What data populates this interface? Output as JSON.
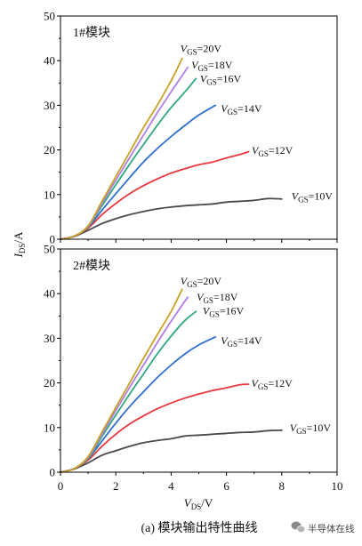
{
  "figure": {
    "ylabel": {
      "base": "I",
      "sub": "DS",
      "rest": "/A"
    },
    "xlabel": {
      "base": "V",
      "sub": "DS",
      "rest": "/V"
    },
    "caption": "(a) 模块输出特性曲线",
    "watermark": "半导体在线"
  },
  "chart_data": [
    {
      "type": "line",
      "title": "1#模块",
      "xlim": [
        0,
        10
      ],
      "ylim": [
        0,
        50
      ],
      "xticks": [
        0,
        2,
        4,
        6,
        8,
        10
      ],
      "xticks_minor": [
        1,
        3,
        5,
        7,
        9
      ],
      "xtick_labels": [],
      "yticks": [
        0,
        10,
        20,
        30,
        40,
        50
      ],
      "yticks_minor": [
        5,
        15,
        25,
        35,
        45
      ],
      "ytick_labels": [
        "0",
        "10",
        "20",
        "30",
        "40",
        "50"
      ],
      "grid": false,
      "series": [
        {
          "name": {
            "base": "V",
            "sub": "GS",
            "rest": "=20V"
          },
          "color": "#c9a227",
          "x": [
            0,
            0.5,
            1,
            1.5,
            2,
            2.5,
            3,
            3.5,
            4,
            4.4
          ],
          "y": [
            0,
            0.7,
            3.0,
            8.5,
            14.0,
            19.5,
            25.0,
            30.0,
            35.5,
            40.5
          ]
        },
        {
          "name": {
            "base": "V",
            "sub": "GS",
            "rest": "=18V"
          },
          "color": "#b07ee6",
          "x": [
            0,
            0.5,
            1,
            1.5,
            2,
            2.5,
            3,
            3.5,
            4,
            4.6
          ],
          "y": [
            0,
            0.7,
            2.9,
            8.0,
            13.2,
            18.3,
            23.3,
            28.3,
            33.0,
            38.5
          ]
        },
        {
          "name": {
            "base": "V",
            "sub": "GS",
            "rest": "=16V"
          },
          "color": "#2ea87c",
          "x": [
            0,
            0.5,
            1,
            1.5,
            2,
            2.5,
            3,
            3.5,
            4,
            4.5,
            4.9
          ],
          "y": [
            0,
            0.7,
            2.8,
            7.5,
            12.2,
            16.8,
            21.2,
            25.5,
            29.5,
            33.0,
            36.0
          ]
        },
        {
          "name": {
            "base": "V",
            "sub": "GS",
            "rest": "=14V"
          },
          "color": "#2f6fd0",
          "x": [
            0,
            0.5,
            1,
            1.5,
            2,
            2.5,
            3,
            3.5,
            4,
            4.5,
            5,
            5.6
          ],
          "y": [
            0,
            0.7,
            2.7,
            6.5,
            10.2,
            13.8,
            17.3,
            20.3,
            23.0,
            25.5,
            27.8,
            30.0
          ]
        },
        {
          "name": {
            "base": "V",
            "sub": "GS",
            "rest": "=12V"
          },
          "color": "#e8373d",
          "x": [
            0,
            0.5,
            1,
            1.5,
            2,
            2.5,
            3,
            3.5,
            4,
            4.5,
            5,
            5.5,
            6,
            6.5,
            6.8
          ],
          "y": [
            0,
            0.7,
            2.5,
            5.5,
            8.0,
            10.2,
            12.0,
            13.5,
            14.8,
            15.8,
            16.7,
            17.3,
            18.2,
            19.0,
            19.6
          ]
        },
        {
          "name": {
            "base": "V",
            "sub": "GS",
            "rest": "=10V"
          },
          "color": "#4a4a4a",
          "x": [
            0,
            0.5,
            1,
            1.5,
            2,
            2.5,
            3,
            3.5,
            4,
            4.5,
            5,
            5.5,
            6,
            6.5,
            7,
            7.5,
            8
          ],
          "y": [
            0,
            0.6,
            2.0,
            3.5,
            4.6,
            5.5,
            6.2,
            6.8,
            7.2,
            7.5,
            7.7,
            7.9,
            8.3,
            8.5,
            8.7,
            9.1,
            9.0
          ]
        }
      ]
    },
    {
      "type": "line",
      "title": "2#模块",
      "xlim": [
        0,
        10
      ],
      "ylim": [
        0,
        50
      ],
      "xticks": [
        0,
        2,
        4,
        6,
        8,
        10
      ],
      "xticks_minor": [
        1,
        3,
        5,
        7,
        9
      ],
      "xtick_labels": [
        "0",
        "2",
        "4",
        "6",
        "8",
        "10"
      ],
      "yticks": [
        0,
        10,
        20,
        30,
        40,
        50
      ],
      "yticks_minor": [
        5,
        15,
        25,
        35,
        45
      ],
      "ytick_labels": [
        "0",
        "10",
        "20",
        "30",
        "40",
        "50"
      ],
      "grid": false,
      "series": [
        {
          "name": {
            "base": "V",
            "sub": "GS",
            "rest": "=20V"
          },
          "color": "#c9a227",
          "x": [
            0,
            0.5,
            1,
            1.5,
            2,
            2.5,
            3,
            3.5,
            4,
            4.4
          ],
          "y": [
            0,
            0.8,
            3.5,
            9.0,
            14.5,
            20.0,
            25.5,
            30.8,
            36.0,
            41.0
          ]
        },
        {
          "name": {
            "base": "V",
            "sub": "GS",
            "rest": "=18V"
          },
          "color": "#b07ee6",
          "x": [
            0,
            0.5,
            1,
            1.5,
            2,
            2.5,
            3,
            3.5,
            4,
            4.6
          ],
          "y": [
            0,
            0.8,
            3.3,
            8.5,
            13.8,
            19.0,
            24.0,
            29.0,
            33.8,
            39.2
          ]
        },
        {
          "name": {
            "base": "V",
            "sub": "GS",
            "rest": "=16V"
          },
          "color": "#2ea87c",
          "x": [
            0,
            0.5,
            1,
            1.5,
            2,
            2.5,
            3,
            3.5,
            4,
            4.5,
            4.9
          ],
          "y": [
            0,
            0.8,
            3.1,
            8.0,
            12.8,
            17.5,
            22.0,
            26.5,
            30.5,
            34.0,
            36.0
          ]
        },
        {
          "name": {
            "base": "V",
            "sub": "GS",
            "rest": "=14V"
          },
          "color": "#2f6fd0",
          "x": [
            0,
            0.5,
            1,
            1.5,
            2,
            2.5,
            3,
            3.5,
            4,
            4.5,
            5,
            5.6
          ],
          "y": [
            0,
            0.8,
            3.0,
            7.0,
            11.0,
            14.7,
            18.0,
            21.2,
            24.0,
            26.5,
            28.5,
            30.3
          ]
        },
        {
          "name": {
            "base": "V",
            "sub": "GS",
            "rest": "=12V"
          },
          "color": "#e8373d",
          "x": [
            0,
            0.5,
            1,
            1.5,
            2,
            2.5,
            3,
            3.5,
            4,
            4.5,
            5,
            5.5,
            6,
            6.5,
            6.8
          ],
          "y": [
            0,
            0.8,
            2.7,
            5.8,
            8.5,
            10.8,
            12.6,
            14.2,
            15.5,
            16.6,
            17.5,
            18.3,
            18.9,
            19.6,
            19.7
          ]
        },
        {
          "name": {
            "base": "V",
            "sub": "GS",
            "rest": "=10V"
          },
          "color": "#4a4a4a",
          "x": [
            0,
            0.5,
            1,
            1.5,
            2,
            2.5,
            3,
            3.5,
            4,
            4.5,
            5,
            5.5,
            6,
            6.5,
            7,
            7.5,
            8
          ],
          "y": [
            0,
            0.7,
            2.1,
            3.8,
            4.8,
            5.8,
            6.6,
            7.1,
            7.5,
            8.1,
            8.3,
            8.5,
            8.7,
            8.9,
            9.0,
            9.3,
            9.4
          ]
        }
      ]
    }
  ]
}
